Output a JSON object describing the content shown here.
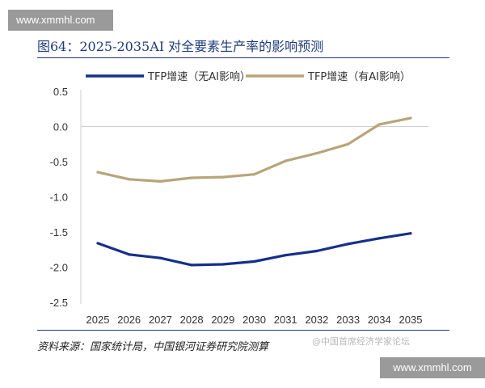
{
  "watermark": {
    "top": "www.xmmhl.com",
    "bottom": "www.xmmhl.com"
  },
  "title": "图64：2025-2035AI 对全要素生产率的影响预测",
  "source": "资料来源：国家统计局，中国银河证券研究院测算",
  "credit": "@中国首席经济学家论坛",
  "colors": {
    "accent": "#1f3b7a"
  },
  "chart_data": {
    "type": "line",
    "x": [
      "2025",
      "2026",
      "2027",
      "2028",
      "2029",
      "2030",
      "2031",
      "2032",
      "2033",
      "2034",
      "2035"
    ],
    "yticks": [
      "0.5",
      "0.0",
      "-0.5",
      "-1.0",
      "-1.5",
      "-2.0",
      "-2.5"
    ],
    "ylim": [
      -2.5,
      0.5
    ],
    "grid": false,
    "legend_position": "top",
    "series": [
      {
        "name": "TFP增速（无AI影响）",
        "color": "#172f8a",
        "values": [
          -1.66,
          -1.82,
          -1.87,
          -1.97,
          -1.96,
          -1.92,
          -1.83,
          -1.77,
          -1.67,
          -1.59,
          -1.52
        ]
      },
      {
        "name": "TFP增速（有AI影响）",
        "color": "#b9a47a",
        "values": [
          -0.65,
          -0.75,
          -0.78,
          -0.73,
          -0.72,
          -0.68,
          -0.49,
          -0.38,
          -0.25,
          0.03,
          0.12
        ]
      }
    ]
  }
}
